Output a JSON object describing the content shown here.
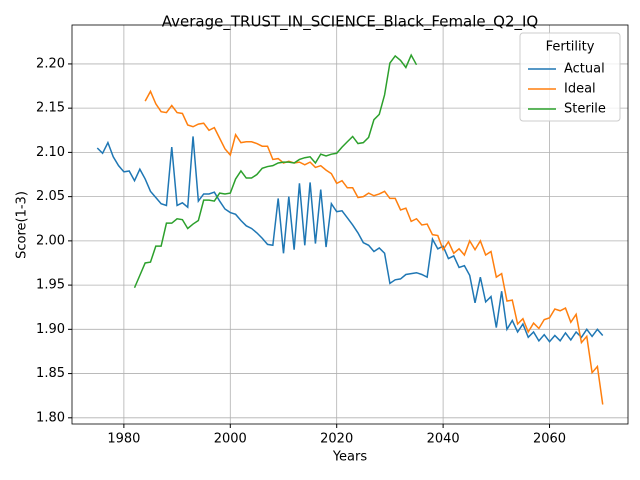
{
  "chart_data": {
    "type": "line",
    "title": "Average_TRUST_IN_SCIENCE_Black_Female_Q2_IQ",
    "xlabel": "Years",
    "ylabel": "Score(1-3)",
    "legend_title": "Fertility",
    "legend": "upper right",
    "x": [
      1975,
      1976,
      1977,
      1978,
      1979,
      1980,
      1981,
      1982,
      1983,
      1984,
      1985,
      1986,
      1987,
      1988,
      1989,
      1990,
      1991,
      1992,
      1993,
      1994,
      1995,
      1996,
      1997,
      1998,
      1999,
      2000,
      2001,
      2002,
      2003,
      2004,
      2005,
      2006,
      2007,
      2008,
      2009,
      2010,
      2011,
      2012,
      2013,
      2014,
      2015,
      2016,
      2017,
      2018,
      2019,
      2020,
      2021,
      2022,
      2023,
      2024,
      2025,
      2026,
      2027,
      2028,
      2029,
      2030,
      2031,
      2032,
      2033,
      2034,
      2035,
      2036,
      2037,
      2038,
      2039,
      2040,
      2041,
      2042,
      2043,
      2044,
      2045,
      2046,
      2047,
      2048,
      2049,
      2050,
      2051,
      2052,
      2053,
      2054,
      2055,
      2056,
      2057,
      2058,
      2059,
      2060,
      2061,
      2062,
      2063,
      2064,
      2065,
      2066,
      2067,
      2068,
      2069,
      2070
    ],
    "series": [
      {
        "name": "Actual",
        "color": "#1f77b4",
        "values": [
          2.105,
          2.099,
          2.111,
          2.095,
          2.085,
          2.078,
          2.079,
          2.068,
          2.081,
          2.07,
          2.056,
          2.049,
          2.042,
          2.04,
          2.106,
          2.04,
          2.043,
          2.038,
          2.118,
          2.045,
          2.053,
          2.053,
          2.055,
          2.045,
          2.036,
          2.032,
          2.03,
          2.023,
          2.017,
          2.014,
          2.009,
          2.003,
          1.996,
          1.995,
          2.048,
          1.986,
          2.05,
          1.99,
          2.065,
          1.995,
          2.066,
          1.997,
          2.058,
          1.993,
          2.042,
          2.033,
          2.034,
          2.026,
          2.018,
          2.009,
          1.998,
          1.995,
          1.988,
          1.992,
          1.986,
          1.952,
          1.956,
          1.957,
          1.962,
          1.963,
          1.964,
          1.962,
          1.959,
          2.002,
          1.991,
          1.994,
          1.98,
          1.983,
          1.97,
          1.972,
          1.961,
          1.93,
          1.959,
          1.931,
          1.937,
          1.902,
          1.943,
          1.9,
          1.91,
          1.897,
          1.906,
          1.891,
          1.897,
          1.887,
          1.894,
          1.886,
          1.893,
          1.887,
          1.896,
          1.888,
          1.897,
          1.891,
          1.9,
          1.892,
          1.9,
          1.893
        ]
      },
      {
        "name": "Ideal",
        "color": "#ff7f0e",
        "values": [
          null,
          null,
          null,
          null,
          null,
          null,
          null,
          null,
          null,
          2.158,
          2.169,
          2.155,
          2.146,
          2.145,
          2.153,
          2.145,
          2.144,
          2.131,
          2.129,
          2.132,
          2.133,
          2.125,
          2.128,
          2.116,
          2.104,
          2.097,
          2.12,
          2.111,
          2.112,
          2.112,
          2.11,
          2.107,
          2.107,
          2.092,
          2.093,
          2.088,
          2.09,
          2.088,
          2.089,
          2.086,
          2.089,
          2.083,
          2.085,
          2.08,
          2.076,
          2.065,
          2.068,
          2.06,
          2.06,
          2.049,
          2.05,
          2.054,
          2.051,
          2.053,
          2.056,
          2.048,
          2.048,
          2.035,
          2.037,
          2.022,
          2.025,
          2.018,
          2.019,
          2.007,
          2.006,
          1.99,
          1.999,
          1.986,
          1.991,
          1.984,
          2.0,
          1.99,
          2.0,
          1.984,
          1.988,
          1.959,
          1.963,
          1.932,
          1.933,
          1.906,
          1.912,
          1.897,
          1.907,
          1.901,
          1.911,
          1.913,
          1.923,
          1.921,
          1.924,
          1.908,
          1.917,
          1.885,
          1.892,
          1.851,
          1.858,
          1.815
        ]
      },
      {
        "name": "Sterile",
        "color": "#2ca02c",
        "values": [
          null,
          null,
          null,
          null,
          null,
          null,
          null,
          1.947,
          1.961,
          1.975,
          1.976,
          1.994,
          1.994,
          2.02,
          2.02,
          2.025,
          2.024,
          2.014,
          2.019,
          2.023,
          2.046,
          2.046,
          2.045,
          2.054,
          2.053,
          2.054,
          2.07,
          2.079,
          2.071,
          2.071,
          2.075,
          2.082,
          2.084,
          2.085,
          2.088,
          2.089,
          2.089,
          2.088,
          2.092,
          2.094,
          2.095,
          2.088,
          2.098,
          2.096,
          2.098,
          2.099,
          2.106,
          2.112,
          2.118,
          2.11,
          2.111,
          2.117,
          2.137,
          2.143,
          2.165,
          2.201,
          2.209,
          2.204,
          2.196,
          2.21,
          2.199,
          null,
          null,
          null,
          null,
          null,
          null,
          null,
          null,
          null,
          null,
          null,
          null,
          null,
          null,
          null,
          null,
          null,
          null,
          null,
          null,
          null,
          null,
          null,
          null,
          null,
          null,
          null,
          null,
          null,
          null,
          null,
          null,
          null,
          null,
          null
        ]
      }
    ],
    "xlim": [
      1970.25,
      2074.75
    ],
    "xticks": [
      1980,
      2000,
      2020,
      2040,
      2060
    ],
    "ylim": [
      1.793,
      2.244
    ],
    "yticks": [
      {
        "value": 1.8,
        "label": "1.80"
      },
      {
        "value": 1.85,
        "label": "1.85"
      },
      {
        "value": 1.9,
        "label": "1.90"
      },
      {
        "value": 1.95,
        "label": "1.95"
      },
      {
        "value": 2.0,
        "label": "2.00"
      },
      {
        "value": 2.05,
        "label": "2.05"
      },
      {
        "value": 2.1,
        "label": "2.10"
      },
      {
        "value": 2.15,
        "label": "2.15"
      },
      {
        "value": 2.2,
        "label": "2.20"
      }
    ],
    "grid": true
  }
}
